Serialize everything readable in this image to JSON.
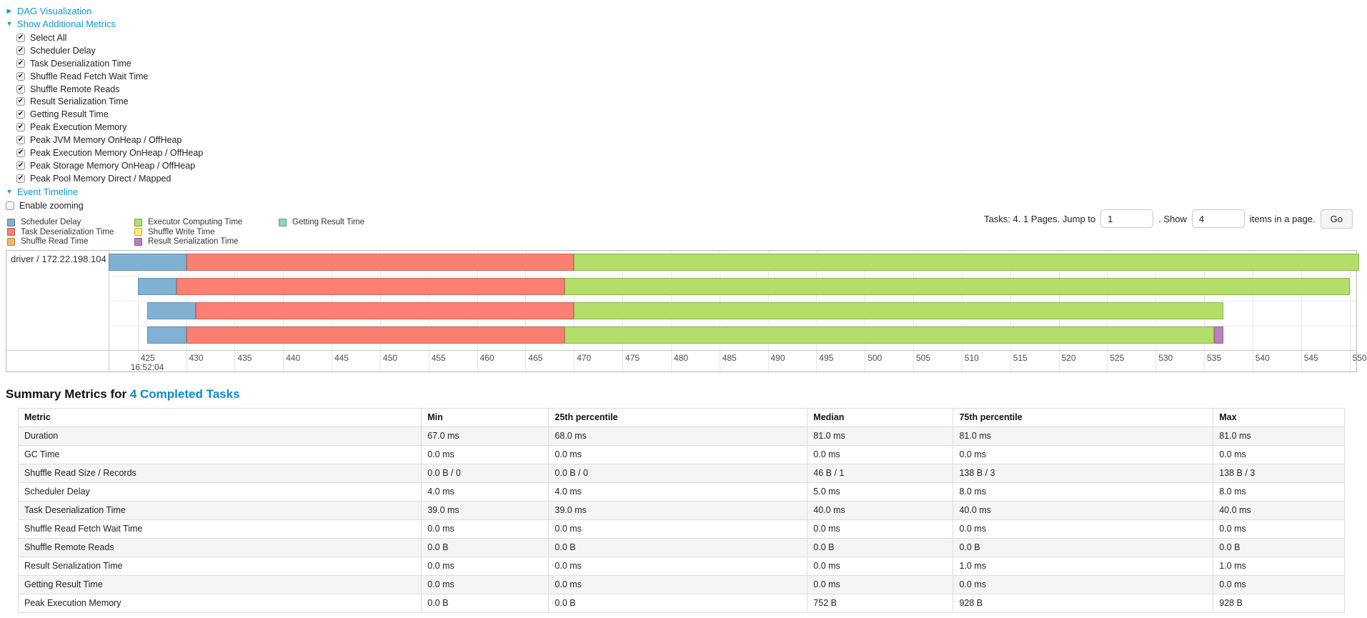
{
  "colors": {
    "link_blue": "#0f97d4",
    "heading_link_blue": "#0a8bce",
    "scheduler_delay": "#80B1D3",
    "task_deserialization": "#FB8072",
    "shuffle_read": "#FDB462",
    "executor_computing": "#B3DE69",
    "shuffle_write": "#FFED6F",
    "result_serialization": "#BC80BD",
    "getting_result": "#8DD3C7"
  },
  "sections": {
    "dag": {
      "label": "DAG Visualization"
    },
    "metrics": {
      "label": "Show Additional Metrics",
      "checkboxes": [
        {
          "label": "Select All",
          "checked": true
        },
        {
          "label": "Scheduler Delay",
          "checked": true
        },
        {
          "label": "Task Deserialization Time",
          "checked": true
        },
        {
          "label": "Shuffle Read Fetch Wait Time",
          "checked": true
        },
        {
          "label": "Shuffle Remote Reads",
          "checked": true
        },
        {
          "label": "Result Serialization Time",
          "checked": true
        },
        {
          "label": "Getting Result Time",
          "checked": true
        },
        {
          "label": "Peak Execution Memory",
          "checked": true
        },
        {
          "label": "Peak JVM Memory OnHeap / OffHeap",
          "checked": true
        },
        {
          "label": "Peak Execution Memory OnHeap / OffHeap",
          "checked": true
        },
        {
          "label": "Peak Storage Memory OnHeap / OffHeap",
          "checked": true
        },
        {
          "label": "Peak Pool Memory Direct / Mapped",
          "checked": true
        }
      ]
    },
    "timeline": {
      "label": "Event Timeline",
      "enable_zooming": {
        "label": "Enable zooming",
        "checked": false
      }
    }
  },
  "legend": [
    {
      "key": "scheduler_delay",
      "label": "Scheduler Delay"
    },
    {
      "key": "task_deserialization",
      "label": "Task Deserialization Time"
    },
    {
      "key": "shuffle_read",
      "label": "Shuffle Read Time"
    },
    {
      "key": "executor_computing",
      "label": "Executor Computing Time"
    },
    {
      "key": "shuffle_write",
      "label": "Shuffle Write Time"
    },
    {
      "key": "result_serialization",
      "label": "Result Serialization Time"
    },
    {
      "key": "getting_result",
      "label": "Getting Result Time"
    }
  ],
  "pagination": {
    "prefix": "Tasks: 4. 1 Pages. Jump to",
    "jump_value": "1",
    "mid": ". Show",
    "show_value": "4",
    "suffix": "items in a page.",
    "go_label": "Go"
  },
  "chart_data": {
    "type": "timeline",
    "group_label": "driver / 172.22.198.104",
    "time_anchor_label": "16:52:04",
    "axis_unit": "ms",
    "view_range_ms": [
      422,
      550.7
    ],
    "ticks": [
      425,
      430,
      435,
      440,
      445,
      450,
      455,
      460,
      465,
      470,
      475,
      480,
      485,
      490,
      495,
      500,
      505,
      510,
      515,
      520,
      525,
      530,
      535,
      540,
      545,
      550
    ],
    "tasks": [
      {
        "start": 422,
        "segments": [
          [
            "scheduler_delay",
            8
          ],
          [
            "task_deserialization",
            40
          ],
          [
            "executor_computing",
            81
          ]
        ]
      },
      {
        "start": 425,
        "segments": [
          [
            "scheduler_delay",
            4
          ],
          [
            "task_deserialization",
            40
          ],
          [
            "executor_computing",
            81
          ]
        ]
      },
      {
        "start": 426,
        "segments": [
          [
            "scheduler_delay",
            5
          ],
          [
            "task_deserialization",
            39
          ],
          [
            "executor_computing",
            67
          ]
        ]
      },
      {
        "start": 426,
        "segments": [
          [
            "scheduler_delay",
            4
          ],
          [
            "task_deserialization",
            39
          ],
          [
            "executor_computing",
            67
          ],
          [
            "result_serialization",
            1
          ]
        ]
      }
    ]
  },
  "summary": {
    "title_prefix": "Summary Metrics for ",
    "title_link": "4 Completed Tasks",
    "table": {
      "columns": [
        "Metric",
        "Min",
        "25th percentile",
        "Median",
        "75th percentile",
        "Max"
      ],
      "column_widths": [
        "30.4%",
        "9.6%",
        "19.5%",
        "11.0%",
        "19.6%",
        "9.9%"
      ],
      "rows": [
        [
          "Duration",
          "67.0 ms",
          "68.0 ms",
          "81.0 ms",
          "81.0 ms",
          "81.0 ms"
        ],
        [
          "GC Time",
          "0.0 ms",
          "0.0 ms",
          "0.0 ms",
          "0.0 ms",
          "0.0 ms"
        ],
        [
          "Shuffle Read Size / Records",
          "0.0 B / 0",
          "0.0 B / 0",
          "46 B / 1",
          "138 B / 3",
          "138 B / 3"
        ],
        [
          "Scheduler Delay",
          "4.0 ms",
          "4.0 ms",
          "5.0 ms",
          "8.0 ms",
          "8.0 ms"
        ],
        [
          "Task Deserialization Time",
          "39.0 ms",
          "39.0 ms",
          "40.0 ms",
          "40.0 ms",
          "40.0 ms"
        ],
        [
          "Shuffle Read Fetch Wait Time",
          "0.0 ms",
          "0.0 ms",
          "0.0 ms",
          "0.0 ms",
          "0.0 ms"
        ],
        [
          "Shuffle Remote Reads",
          "0.0 B",
          "0.0 B",
          "0.0 B",
          "0.0 B",
          "0.0 B"
        ],
        [
          "Result Serialization Time",
          "0.0 ms",
          "0.0 ms",
          "0.0 ms",
          "1.0 ms",
          "1.0 ms"
        ],
        [
          "Getting Result Time",
          "0.0 ms",
          "0.0 ms",
          "0.0 ms",
          "0.0 ms",
          "0.0 ms"
        ],
        [
          "Peak Execution Memory",
          "0.0 B",
          "0.0 B",
          "752 B",
          "928 B",
          "928 B"
        ]
      ]
    }
  }
}
